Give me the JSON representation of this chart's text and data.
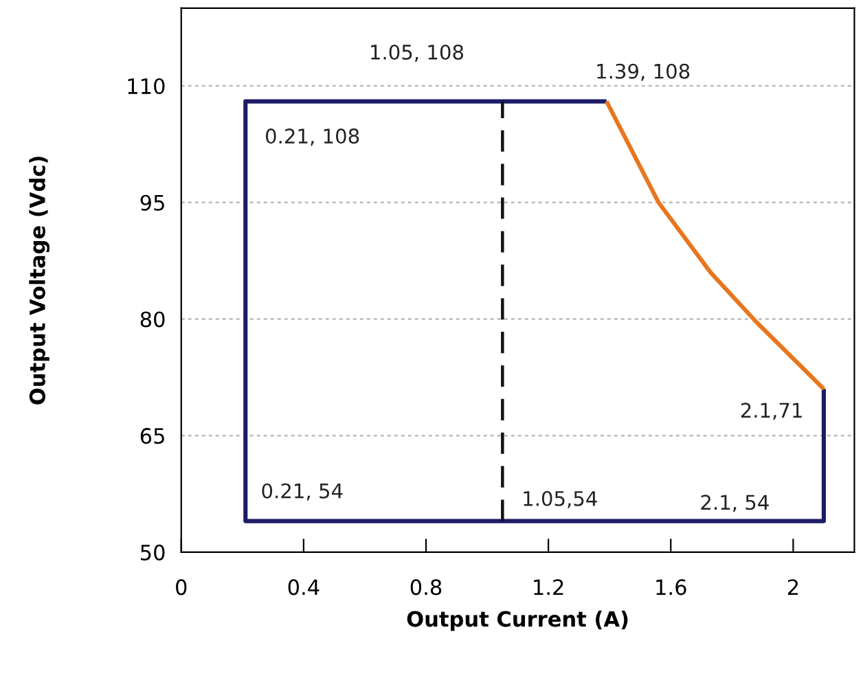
{
  "chart_data": {
    "type": "line",
    "xlabel": "Output Current (A)",
    "ylabel": "Output Voltage (Vdc)",
    "xlim": [
      0,
      2.2
    ],
    "xticks": [
      0,
      0.4,
      0.8,
      1.2,
      1.6,
      2
    ],
    "ylim": [
      50,
      120
    ],
    "yticks": [
      50,
      65,
      80,
      95,
      110
    ],
    "grid": "y",
    "legend": false,
    "marker": "none",
    "series": [
      {
        "color": "#1c1c66",
        "x": [
          2.1,
          2.1,
          0.21,
          0.21,
          1.39
        ],
        "values": [
          71,
          54,
          54,
          108,
          108
        ],
        "line_style": "solid"
      },
      {
        "color": "#e8761e",
        "x": [
          1.39,
          1.56,
          1.73,
          1.88,
          2.1
        ],
        "values": [
          108,
          95,
          86,
          79.6,
          71
        ],
        "line_style": "solid"
      },
      {
        "color": "#111111",
        "x": [
          1.05,
          1.05
        ],
        "values": [
          54,
          108
        ],
        "line_style": "dashed"
      }
    ],
    "annotations": [
      {
        "text": "1.05, 108",
        "x": 1.05,
        "y": 108
      },
      {
        "text": "1.39, 108",
        "x": 1.39,
        "y": 108
      },
      {
        "text": "0.21, 108",
        "x": 0.21,
        "y": 108
      },
      {
        "text": "2.1,71",
        "x": 2.1,
        "y": 71
      },
      {
        "text": "0.21, 54",
        "x": 0.21,
        "y": 54
      },
      {
        "text": "1.05,54",
        "x": 1.05,
        "y": 54
      },
      {
        "text": "2.1, 54",
        "x": 2.1,
        "y": 54
      }
    ]
  }
}
